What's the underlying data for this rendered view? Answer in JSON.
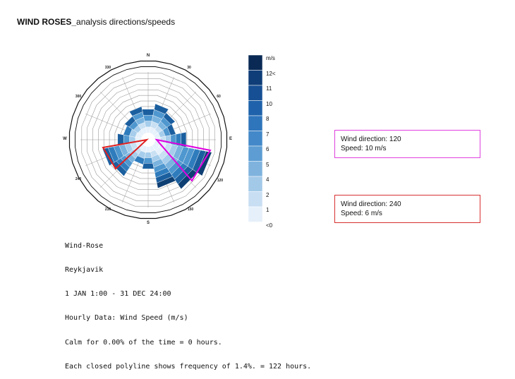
{
  "header": {
    "title_bold": "WIND ROSES_",
    "title_rest": "analysis directions/speeds"
  },
  "rose": {
    "compass": [
      "N",
      "E",
      "S",
      "W"
    ],
    "angles": [
      "30",
      "60",
      "120",
      "150",
      "210",
      "240",
      "300",
      "330"
    ],
    "highlight_colors": {
      "magenta": "#e000e0",
      "red": "#e02020"
    }
  },
  "scale": {
    "unit": "m/s",
    "labels": [
      "12<",
      "11",
      "10",
      "8",
      "7",
      "6",
      "5",
      "4",
      "2",
      "1",
      "<0"
    ]
  },
  "caption": {
    "lines": [
      "Wind-Rose",
      "Reykjavik",
      "1 JAN 1:00 - 31 DEC 24:00",
      "Hourly Data: Wind Speed (m/s)",
      "Calm for 0.00% of the time = 0 hours.",
      "Each closed polyline shows frequency of 1.4%. = 122 hours."
    ]
  },
  "notes": [
    {
      "direction": "Wind direction: 120",
      "speed": "Speed: 10 m/s"
    },
    {
      "direction": "Wind direction: 240",
      "speed": "Speed: 6 m/s"
    }
  ]
}
